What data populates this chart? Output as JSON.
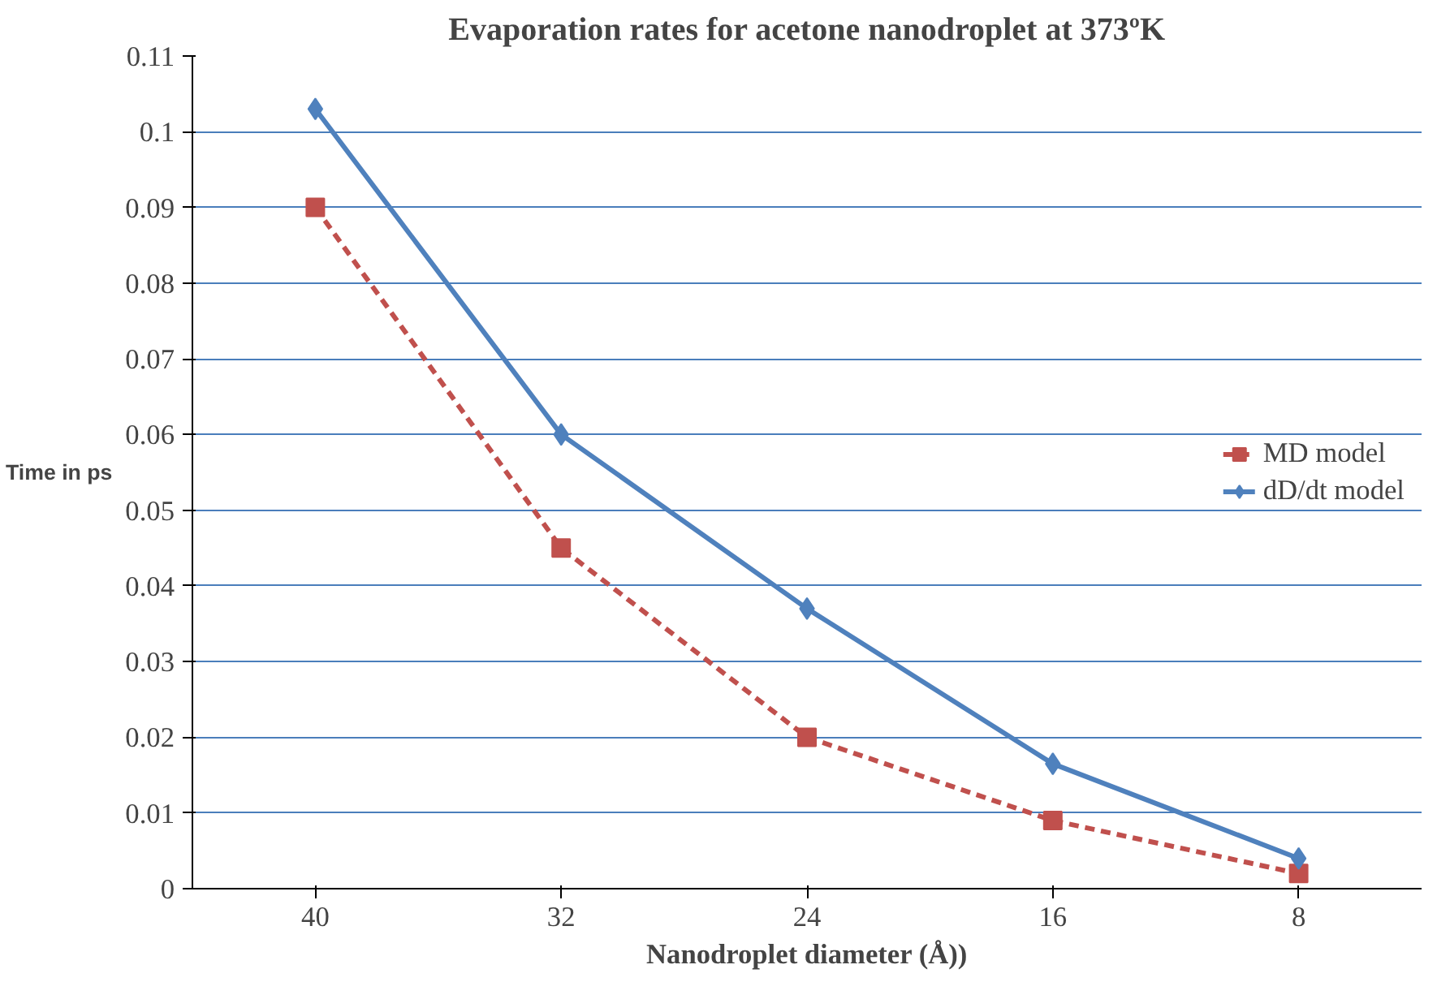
{
  "chart_data": {
    "type": "line",
    "title": "Evaporation rates for acetone nanodroplet at 373ºK",
    "xlabel": "Nanodroplet diameter (Å))",
    "ylabel": "Time in ps",
    "categories": [
      "40",
      "32",
      "24",
      "16",
      "8"
    ],
    "series": [
      {
        "name": "MD model",
        "color": "#c0504d",
        "values": [
          0.09,
          0.045,
          0.02,
          0.009,
          0.002
        ],
        "marker": "square",
        "line_style": "dashed"
      },
      {
        "name": "dD/dt model",
        "color": "#4f81bd",
        "values": [
          0.103,
          0.06,
          0.037,
          0.0165,
          0.004
        ],
        "marker": "diamond",
        "line_style": "solid"
      }
    ],
    "ylim": [
      0,
      0.11
    ],
    "yticks": [
      0,
      0.01,
      0.02,
      0.03,
      0.04,
      0.05,
      0.06,
      0.07,
      0.08,
      0.09,
      0.1,
      0.11
    ],
    "grid": "y",
    "legend": "right"
  }
}
